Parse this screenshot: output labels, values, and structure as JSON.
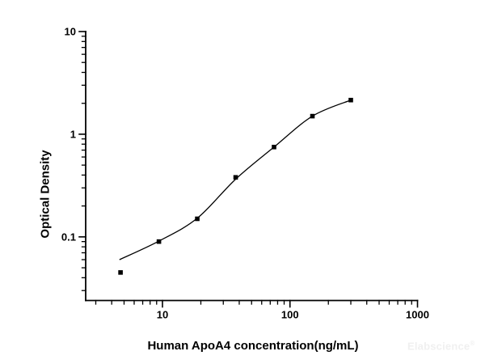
{
  "page": {
    "background_color": "#ffffff",
    "text_color": "#000000"
  },
  "watermark": {
    "text": "Elabscience",
    "registered_mark": "®",
    "color": "#f0f0f0"
  },
  "chart_data": {
    "type": "scatter",
    "title": "",
    "xlabel": "Human ApoA4 concentration(ng/mL)",
    "ylabel": "Optical Density",
    "x_scale": "log",
    "y_scale": "log",
    "xlim": [
      2.5,
      1000
    ],
    "ylim": [
      0.024,
      10
    ],
    "x_major_ticks": [
      10,
      100,
      1000
    ],
    "x_major_tick_labels": [
      "10",
      "100",
      "1000"
    ],
    "y_major_ticks": [
      0.1,
      1,
      10
    ],
    "y_major_tick_labels": [
      "0.1",
      "1",
      "10"
    ],
    "grid": false,
    "legend": null,
    "axis_color": "#000000",
    "series": [
      {
        "name": "standard-points",
        "marker": "filled-square",
        "color": "#000000",
        "x": [
          4.69,
          9.38,
          18.75,
          37.5,
          75,
          150,
          300
        ],
        "y": [
          0.045,
          0.09,
          0.15,
          0.38,
          0.75,
          1.5,
          2.15
        ]
      }
    ],
    "fit_curve": {
      "name": "four-parameter-logistic-fit",
      "color": "#000000",
      "x": [
        4.6,
        9.38,
        18.75,
        37.5,
        75,
        150,
        300
      ],
      "y": [
        0.06,
        0.091,
        0.152,
        0.365,
        0.75,
        1.5,
        2.15
      ]
    }
  }
}
